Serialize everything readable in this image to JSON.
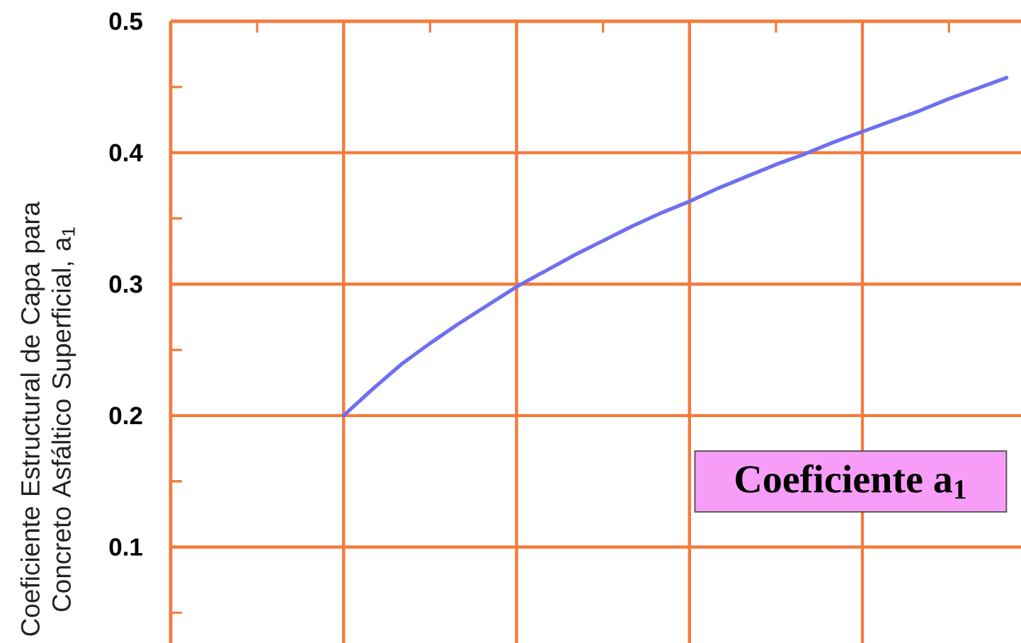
{
  "chart_data": {
    "type": "line",
    "ylabel": "Coeficiente Estructural de Capa para Concreto Asfáltico Superficial, a$_{1}$",
    "annotations": [
      "Coeficiente a$_{1}$"
    ],
    "categories": [
      null,
      null,
      null,
      null,
      null,
      null,
      null,
      null,
      null,
      null,
      null,
      null,
      null,
      null,
      null,
      null,
      null,
      null,
      null,
      null,
      null,
      null,
      null,
      null,
      null,
      null,
      null,
      null,
      null,
      null
    ],
    "values": [
      null,
      null,
      null,
      null,
      null,
      null,
      0.2,
      0.22,
      0.239,
      0.255,
      0.27,
      0.284,
      0.298,
      0.31,
      0.322,
      0.333,
      0.344,
      0.354,
      0.363,
      0.373,
      0.382,
      0.391,
      0.399,
      0.408,
      0.416,
      0.424,
      0.432,
      0.441,
      0.449,
      0.457
    ],
    "color": "#6f6ff0",
    "ylim": [
      0.027,
      0.5
    ],
    "yticks": [
      {
        "value": 0.05,
        "label": null
      },
      0.1,
      {
        "value": 0.15,
        "label": null
      },
      0.2,
      {
        "value": 0.25,
        "label": null
      },
      0.3,
      {
        "value": 0.35,
        "label": null
      },
      0.4,
      {
        "value": 0.45,
        "label": null
      },
      0.5
    ],
    "grid": true,
    "tick_labels": "y",
    "marker": "none",
    "line_style": "solid"
  }
}
